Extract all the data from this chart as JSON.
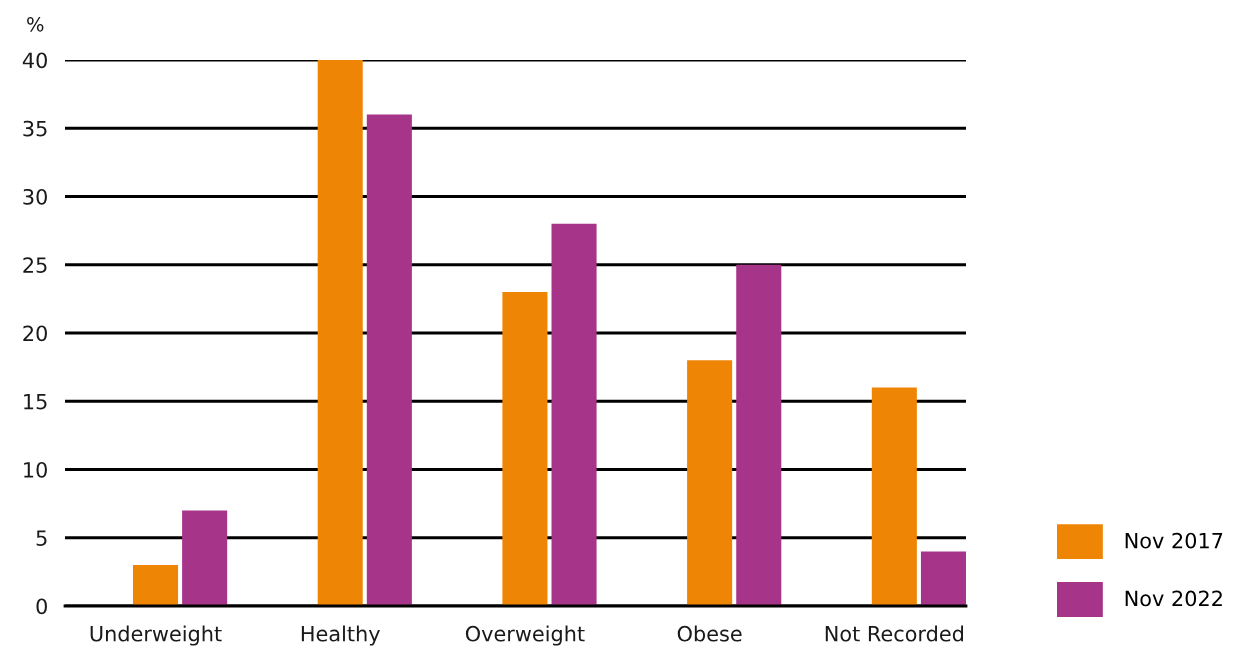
{
  "chart_data": {
    "type": "bar",
    "ylabel": "%",
    "categories": [
      "Underweight",
      "Healthy",
      "Overweight",
      "Obese",
      "Not Recorded"
    ],
    "series": [
      {
        "name": "Nov 2017",
        "color": "#ef8505",
        "values": [
          3,
          40,
          23,
          18,
          16
        ]
      },
      {
        "name": "Nov 2022",
        "color": "#a63589",
        "values": [
          7,
          36,
          28,
          25,
          4
        ]
      }
    ],
    "ylim": [
      0,
      40
    ],
    "yticks": [
      0,
      5,
      10,
      15,
      20,
      25,
      30,
      35,
      40
    ],
    "grid": "y",
    "legend": "bottom right"
  }
}
